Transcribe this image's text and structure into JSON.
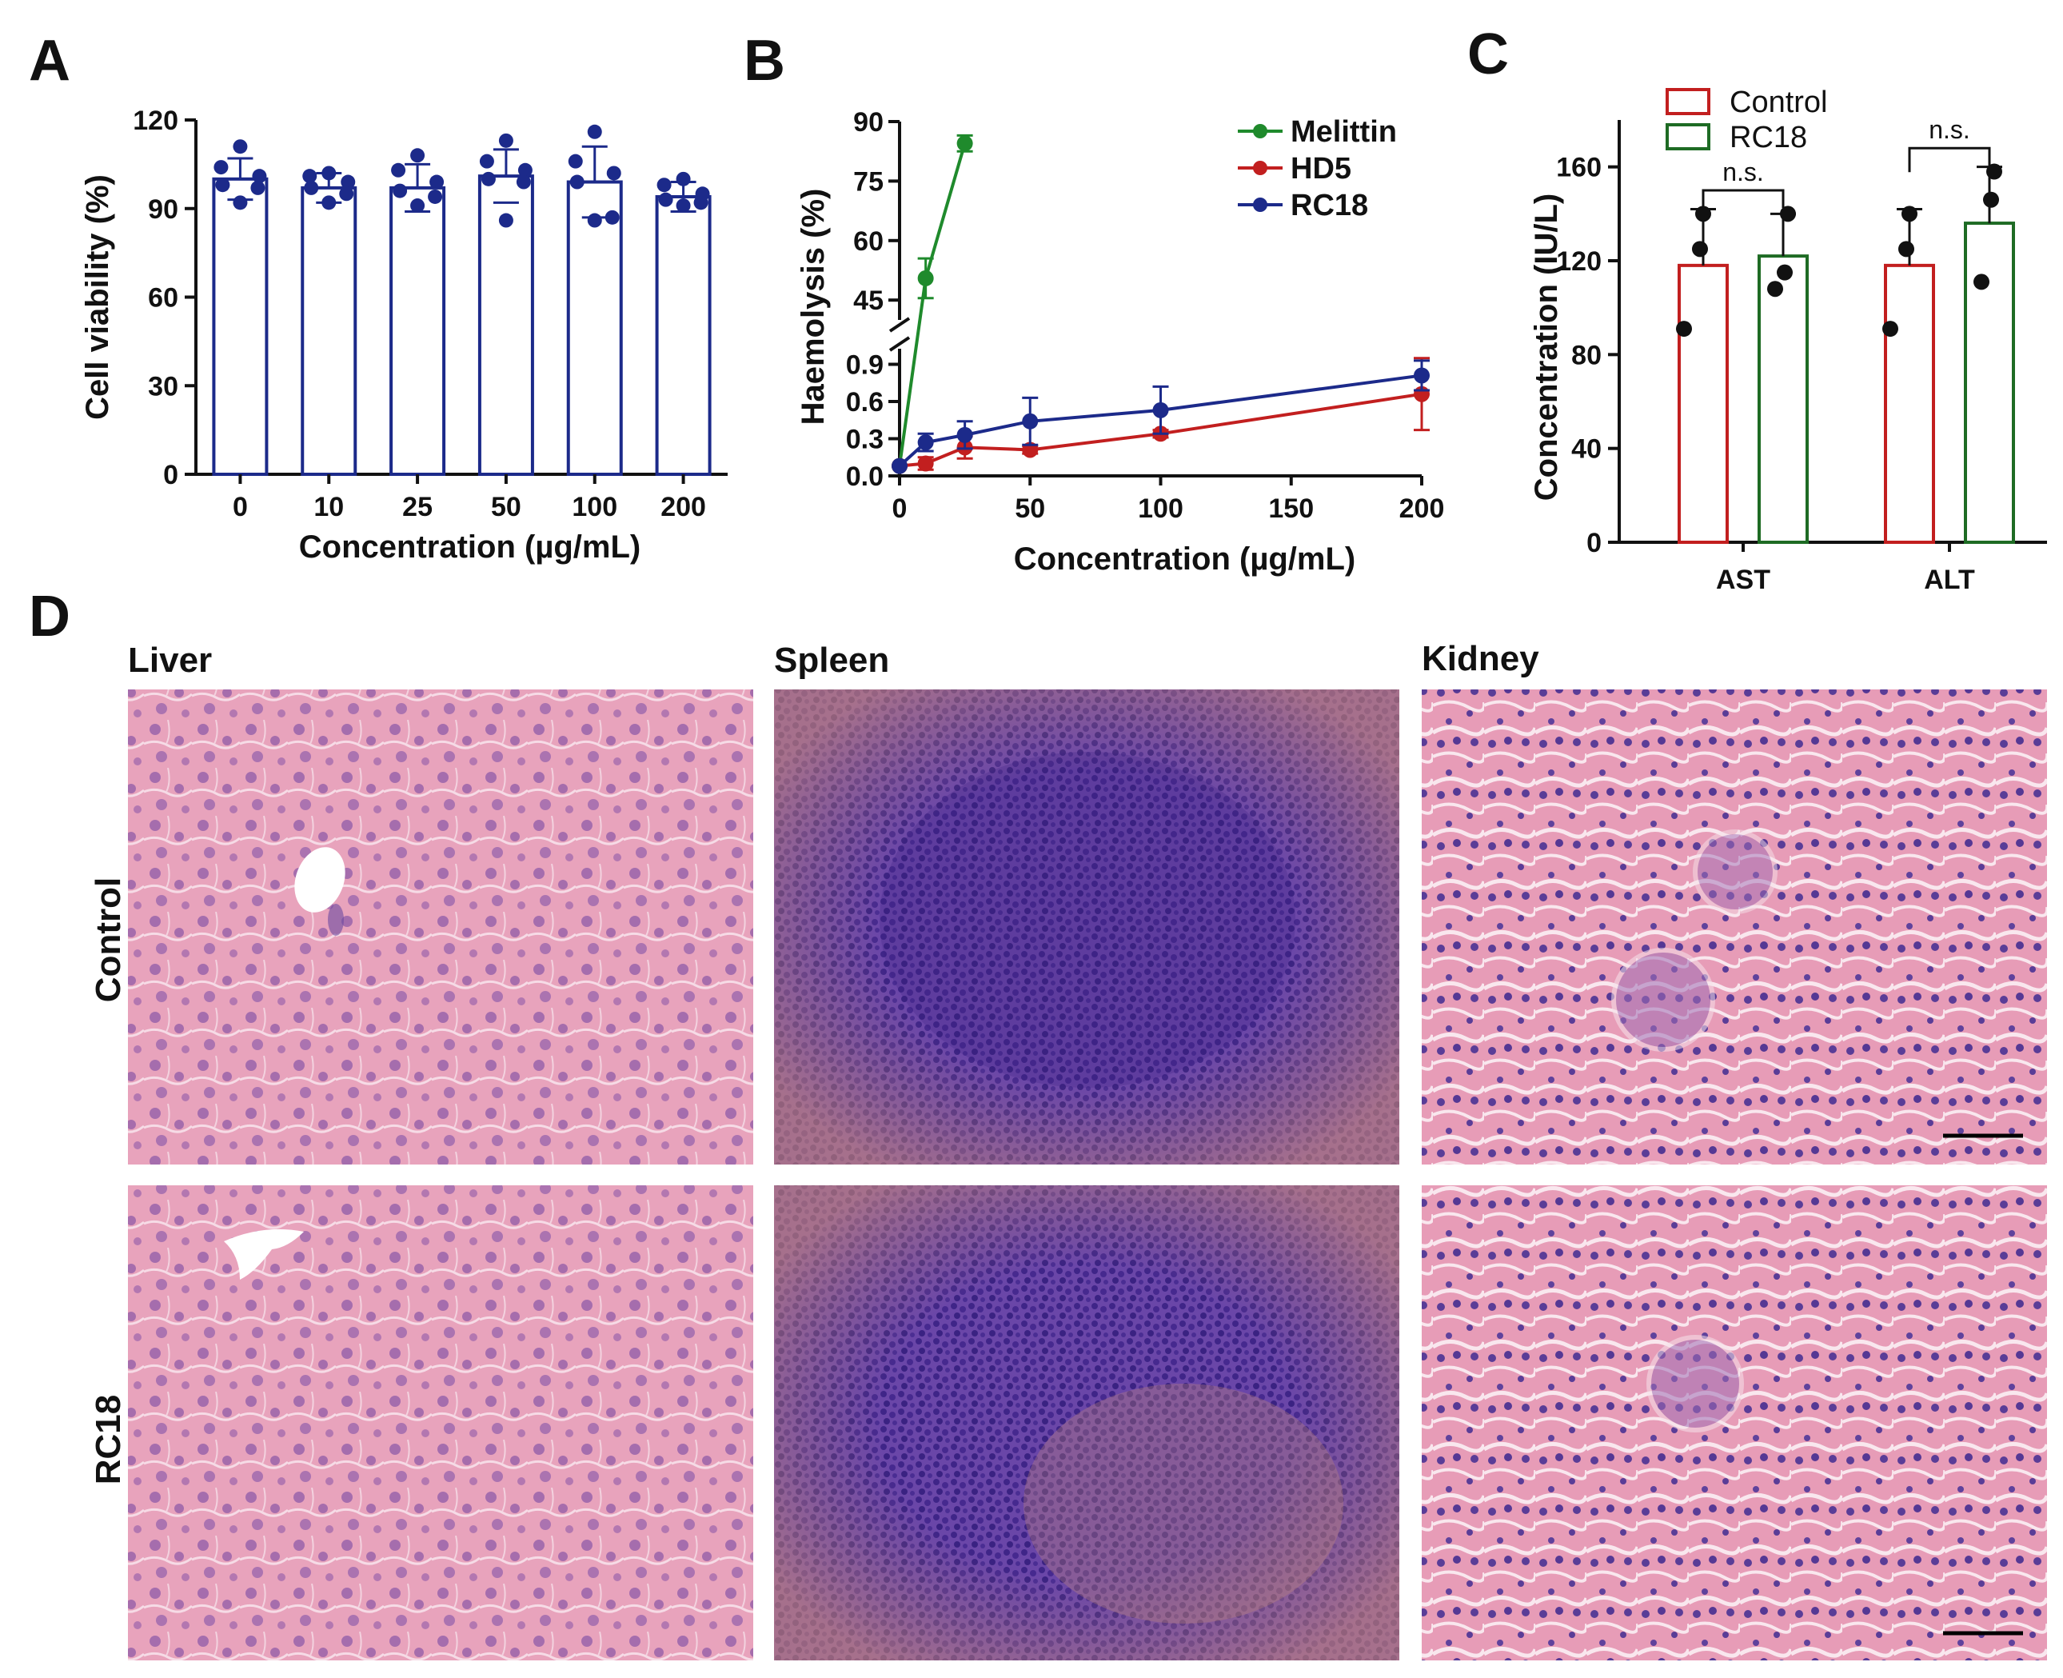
{
  "panels": {
    "A": {
      "letter": "A"
    },
    "B": {
      "letter": "B"
    },
    "C": {
      "letter": "C"
    },
    "D": {
      "letter": "D"
    }
  },
  "colors": {
    "navy": "#1c2a8a",
    "green": "#1f8a2c",
    "red": "#c21f1f",
    "dark_green": "#1e6b24",
    "tissue_pink": "#e59ab5",
    "spleen_purple": "#5a3a9c"
  },
  "chart_data": [
    {
      "id": "A",
      "type": "bar",
      "title": "",
      "xlabel": "Concentration (µg/mL)",
      "ylabel": "Cell viability (%)",
      "categories": [
        "0",
        "10",
        "25",
        "50",
        "100",
        "200"
      ],
      "values": [
        100,
        97,
        97,
        101,
        99,
        94
      ],
      "errors": [
        7,
        5,
        8,
        9,
        12,
        5
      ],
      "points": [
        [
          111,
          104,
          101,
          98,
          97,
          92
        ],
        [
          102,
          101,
          99,
          97,
          95,
          92
        ],
        [
          108,
          103,
          99,
          96,
          94,
          91
        ],
        [
          113,
          106,
          103,
          100,
          99,
          86
        ],
        [
          116,
          106,
          102,
          99,
          87,
          86
        ],
        [
          100,
          98,
          95,
          93,
          92,
          91
        ]
      ],
      "yticks": [
        "0",
        "30",
        "60",
        "90",
        "120"
      ],
      "ylim": [
        0,
        120
      ],
      "grid": false
    },
    {
      "id": "B",
      "type": "line",
      "title": "",
      "xlabel": "Concentration (µg/mL)",
      "ylabel": "Haemolysis (%)",
      "xticks": [
        "0",
        "50",
        "100",
        "150",
        "200"
      ],
      "yticks_lower": [
        "0.0",
        "0.3",
        "0.6",
        "0.9"
      ],
      "yticks_upper": [
        "45",
        "60",
        "75",
        "90"
      ],
      "ylim_lower": [
        0,
        1.0
      ],
      "ylim_upper": [
        40,
        90
      ],
      "axis_break": true,
      "legend_position": "top-right",
      "series": [
        {
          "name": "Melittin",
          "x": [
            0,
            10,
            25
          ],
          "y": [
            0.08,
            50.5,
            84.5
          ],
          "err": [
            0.02,
            5,
            2
          ]
        },
        {
          "name": "HD5",
          "x": [
            0,
            10,
            25,
            50,
            100,
            200
          ],
          "y": [
            0.08,
            0.1,
            0.23,
            0.21,
            0.34,
            0.66
          ],
          "err": [
            0.02,
            0.05,
            0.09,
            0.03,
            0.03,
            0.29
          ]
        },
        {
          "name": "RC18",
          "x": [
            0,
            10,
            25,
            50,
            100,
            200
          ],
          "y": [
            0.08,
            0.27,
            0.33,
            0.44,
            0.53,
            0.81
          ],
          "err": [
            0.02,
            0.07,
            0.11,
            0.19,
            0.19,
            0.12
          ]
        }
      ]
    },
    {
      "id": "C",
      "type": "bar",
      "title": "",
      "xlabel": "",
      "ylabel": "Concentration (IU/L)",
      "categories": [
        "AST",
        "ALT"
      ],
      "yticks": [
        "0",
        "40",
        "80",
        "120",
        "160"
      ],
      "ylim": [
        0,
        180
      ],
      "legend_position": "top-left",
      "significance": [
        "n.s.",
        "n.s."
      ],
      "series": [
        {
          "name": "Control",
          "values": [
            118,
            118
          ],
          "errors": [
            24,
            24
          ],
          "points": [
            [
              140,
              125,
              91
            ],
            [
              140,
              125,
              91
            ]
          ]
        },
        {
          "name": "RC18",
          "values": [
            122,
            136
          ],
          "errors": [
            18,
            24
          ],
          "points": [
            [
              140,
              115,
              108
            ],
            [
              158,
              146,
              111
            ]
          ]
        }
      ]
    }
  ],
  "histology": {
    "columns": [
      "Liver",
      "Spleen",
      "Kidney"
    ],
    "rows": [
      "Control",
      "RC18"
    ]
  }
}
